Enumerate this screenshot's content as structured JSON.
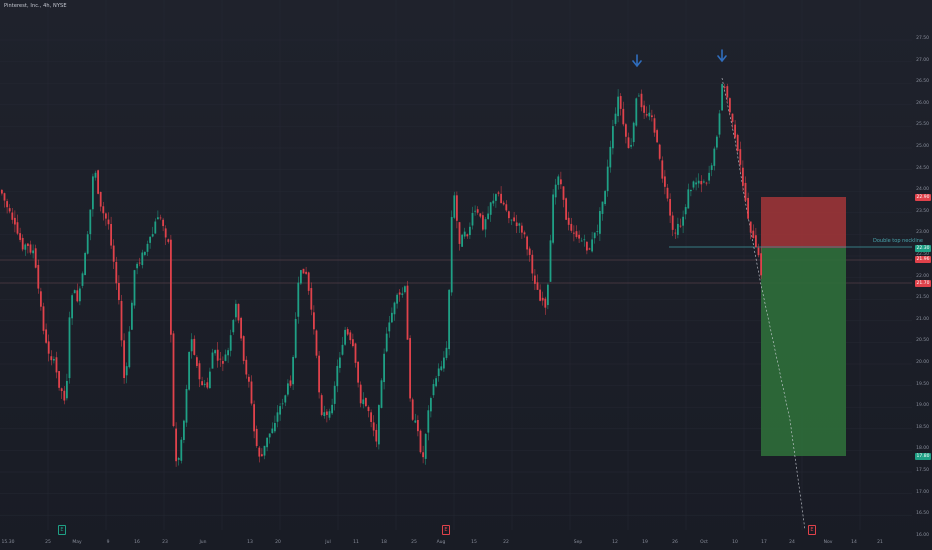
{
  "header": {
    "title": "Pinterest, Inc., 4h, NYSE"
  },
  "colors": {
    "background": "#1d2029",
    "up_candle": "#1fa085",
    "down_candle": "#e0424b",
    "stop_zone": "#a33638",
    "target_zone": "#2f6e3a",
    "pattern_line": "#3f9aa1",
    "arrow": "#2f6dbd",
    "grid": "#262934"
  },
  "price_axis": {
    "labels": [
      "27.50",
      "27.00",
      "26.50",
      "26.00",
      "25.50",
      "25.00",
      "24.50",
      "24.00",
      "23.50",
      "23.00",
      "22.50",
      "22.00",
      "21.50",
      "21.00",
      "20.50",
      "20.00",
      "19.50",
      "19.00",
      "18.50",
      "18.00",
      "17.50",
      "17.00",
      "16.50",
      "16.00"
    ]
  },
  "time_axis": {
    "labels": [
      "15.30",
      "25",
      "May",
      "9",
      "16",
      "23",
      "Jun",
      "13",
      "20",
      "Jul",
      "11",
      "18",
      "25",
      "Aug",
      "15",
      "22",
      "Sep",
      "12",
      "19",
      "26",
      "Oct",
      "10",
      "17",
      "24",
      "Nov",
      "14",
      "21"
    ]
  },
  "badges": [
    {
      "text": "22.90",
      "color": "#e0424b"
    },
    {
      "text": "22.30",
      "color": "#1fa085"
    },
    {
      "text": "21.96",
      "color": "#e0424b"
    },
    {
      "text": "21.70",
      "color": "#e0424b"
    },
    {
      "text": "17.80",
      "color": "#1fa085"
    }
  ],
  "annotation": {
    "label": "Double top neckline"
  },
  "icons": {
    "arrow": "arrow-down-icon",
    "earnings": "earnings-event-icon",
    "dividend": "event-icon"
  },
  "events": [
    {
      "label": "E",
      "color": "#1fa085"
    },
    {
      "label": "E",
      "color": "#e0424b"
    },
    {
      "label": "E",
      "color": "#e0424b"
    }
  ]
}
